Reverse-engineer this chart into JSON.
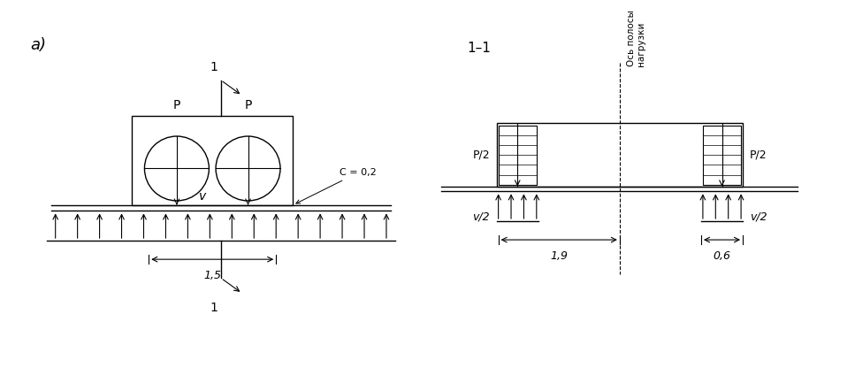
{
  "fig_width": 9.67,
  "fig_height": 4.16,
  "bg_color": "#ffffff",
  "line_color": "#000000",
  "label_a": "a)",
  "section_label": "1–1",
  "axis_label": "Ось полосы\nнагрузки",
  "left_dim_1": "1",
  "left_dim_bottom": "1",
  "dim_1_5": "1,5",
  "label_P_left": "P",
  "label_P_right": "P",
  "label_v": "v",
  "label_c": "C = 0,2",
  "label_P2_left": "P/2",
  "label_P2_right": "P/2",
  "label_v2_left": "v/2",
  "label_v2_right": "v/2",
  "dim_1_9": "1,9",
  "dim_0_6": "0,6"
}
